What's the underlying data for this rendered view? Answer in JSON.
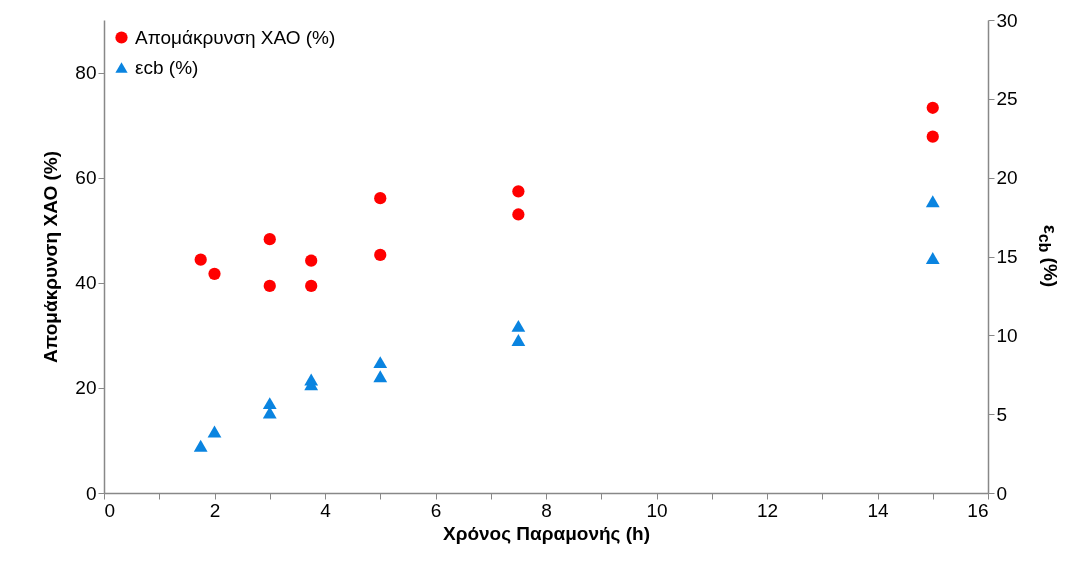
{
  "chart_data": {
    "type": "scatter",
    "xlabel": "Χρόνος Παραμονής (h)",
    "ylabel": "Απομάκρυνση ΧΑΟ (%)",
    "y2label": "ε$_{cb}$ (%)",
    "xlim": [
      0,
      16
    ],
    "xticks": [
      0,
      {
        "value": 1,
        "label": null
      },
      2,
      {
        "value": 3,
        "label": null
      },
      4,
      {
        "value": 5,
        "label": null
      },
      6,
      {
        "value": 7,
        "label": null
      },
      8,
      {
        "value": 9,
        "label": null
      },
      10,
      {
        "value": 11,
        "label": null
      },
      12,
      {
        "value": 13,
        "label": null
      },
      14,
      {
        "value": 15,
        "label": null
      },
      16
    ],
    "ylim": [
      0,
      90
    ],
    "yticks": [
      0,
      20,
      40,
      60,
      80
    ],
    "y2lim": [
      0,
      30
    ],
    "y2ticks": [
      0,
      5,
      10,
      15,
      20,
      25,
      30
    ],
    "grid": false,
    "legend": "top left",
    "series": [
      {
        "name": "Απομάκρυνση ΧΑΟ (%)",
        "color": "#ff0000",
        "marker": "circle",
        "x": [
          1.75,
          2,
          3,
          3,
          3.75,
          3.75,
          5,
          5,
          7.5,
          7.5,
          15,
          15
        ],
        "values": [
          44.4,
          41.7,
          48.3,
          39.4,
          44.2,
          39.4,
          56.1,
          45.3,
          57.4,
          53.0,
          73.3,
          67.8
        ]
      },
      {
        "name": "εcb (%)",
        "color": "#0a84e0",
        "marker": "triangle",
        "axis": "y2",
        "x": [
          1.75,
          2,
          3,
          3,
          3.75,
          3.75,
          5,
          5,
          7.5,
          7.5,
          15,
          15
        ],
        "values": [
          3.0,
          3.9,
          5.7,
          5.1,
          7.2,
          6.9,
          8.3,
          7.4,
          10.6,
          9.7,
          18.5,
          14.9
        ]
      }
    ]
  }
}
